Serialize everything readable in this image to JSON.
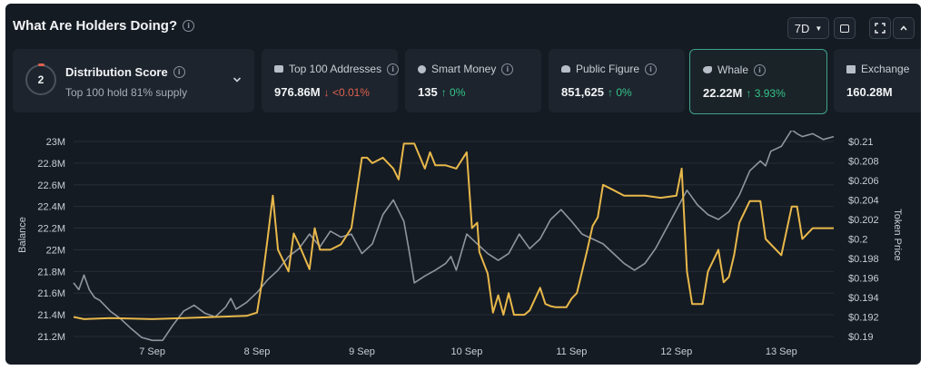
{
  "header": {
    "title": "What Are Holders Doing?",
    "period": "7D"
  },
  "cards": [
    {
      "label": "Distribution Score",
      "score": "2",
      "sub": "Top 100 hold 81% supply"
    },
    {
      "label": "Top 100 Addresses",
      "value": "976.86M",
      "change": "<0.01%",
      "direction": "down",
      "icon": "wallet-icon"
    },
    {
      "label": "Smart Money",
      "value": "135",
      "change": "0%",
      "direction": "up",
      "icon": "smart-money-icon"
    },
    {
      "label": "Public Figure",
      "value": "851,625",
      "change": "0%",
      "direction": "up",
      "icon": "public-figure-icon"
    },
    {
      "label": "Whale",
      "value": "22.22M",
      "change": "3.93%",
      "direction": "up",
      "icon": "whale-icon"
    },
    {
      "label": "Exchange",
      "value": "160.28M",
      "icon": "exchange-icon"
    }
  ],
  "chart_data": {
    "type": "line",
    "ylabel": "Balance",
    "y2label": "Token Price",
    "x_ticks": [
      "7 Sep",
      "8 Sep",
      "9 Sep",
      "10 Sep",
      "11 Sep",
      "12 Sep",
      "13 Sep"
    ],
    "y_ticks": [
      "21.2M",
      "21.4M",
      "21.6M",
      "21.8M",
      "22M",
      "22.2M",
      "22.4M",
      "22.6M",
      "22.8M",
      "23M"
    ],
    "y2_ticks": [
      "$0.19",
      "$0.192",
      "$0.194",
      "$0.196",
      "$0.198",
      "$0.2",
      "$0.202",
      "$0.204",
      "$0.206",
      "$0.208",
      "$0.21"
    ],
    "ylim": [
      21.2,
      23.0
    ],
    "y2lim": [
      0.19,
      0.21
    ],
    "xlim": [
      6.25,
      13.5
    ],
    "grid": true,
    "series": [
      {
        "axis": "left",
        "color": "#e8b84a",
        "x": [
          6.25,
          6.35,
          6.6,
          7.0,
          7.3,
          7.6,
          7.9,
          8.0,
          8.05,
          8.1,
          8.15,
          8.2,
          8.25,
          8.3,
          8.35,
          8.4,
          8.5,
          8.55,
          8.6,
          8.7,
          8.8,
          8.9,
          9.0,
          9.05,
          9.1,
          9.2,
          9.3,
          9.35,
          9.4,
          9.5,
          9.6,
          9.65,
          9.7,
          9.8,
          9.9,
          10.0,
          10.05,
          10.1,
          10.12,
          10.2,
          10.25,
          10.3,
          10.35,
          10.4,
          10.45,
          10.55,
          10.6,
          10.7,
          10.75,
          10.8,
          10.85,
          10.95,
          11.0,
          11.05,
          11.15,
          11.2,
          11.25,
          11.3,
          11.4,
          11.5,
          11.55,
          11.7,
          11.85,
          12.0,
          12.05,
          12.1,
          12.15,
          12.25,
          12.3,
          12.4,
          12.45,
          12.5,
          12.55,
          12.6,
          12.7,
          12.8,
          12.85,
          13.0,
          13.1,
          13.15,
          13.2,
          13.3,
          13.4,
          13.5
        ],
        "y": [
          21.38,
          21.36,
          21.37,
          21.36,
          21.37,
          21.38,
          21.39,
          21.42,
          21.72,
          22.1,
          22.5,
          22.0,
          21.9,
          21.8,
          22.15,
          22.05,
          21.82,
          22.2,
          22.0,
          22.0,
          22.05,
          22.2,
          22.85,
          22.85,
          22.8,
          22.85,
          22.75,
          22.65,
          22.98,
          22.98,
          22.75,
          22.9,
          22.78,
          22.78,
          22.75,
          22.9,
          22.2,
          22.25,
          21.98,
          21.78,
          21.42,
          21.58,
          21.4,
          21.6,
          21.4,
          21.4,
          21.44,
          21.65,
          21.5,
          21.48,
          21.47,
          21.47,
          21.55,
          21.6,
          22.0,
          22.22,
          22.3,
          22.6,
          22.55,
          22.5,
          22.5,
          22.5,
          22.48,
          22.5,
          22.75,
          21.8,
          21.5,
          21.5,
          21.8,
          22.0,
          21.7,
          21.75,
          21.95,
          22.25,
          22.45,
          22.45,
          22.1,
          21.95,
          22.4,
          22.4,
          22.1,
          22.2,
          22.2,
          22.2
        ]
      },
      {
        "axis": "right",
        "color": "#8f969f",
        "x": [
          6.25,
          6.3,
          6.35,
          6.4,
          6.45,
          6.5,
          6.6,
          6.7,
          6.8,
          6.9,
          7.0,
          7.1,
          7.2,
          7.3,
          7.4,
          7.5,
          7.6,
          7.7,
          7.75,
          7.8,
          7.9,
          8.0,
          8.1,
          8.2,
          8.3,
          8.4,
          8.5,
          8.6,
          8.7,
          8.8,
          8.9,
          9.0,
          9.1,
          9.2,
          9.3,
          9.4,
          9.45,
          9.5,
          9.6,
          9.7,
          9.8,
          9.85,
          9.9,
          10.0,
          10.1,
          10.2,
          10.3,
          10.4,
          10.5,
          10.6,
          10.7,
          10.8,
          10.9,
          11.0,
          11.1,
          11.2,
          11.3,
          11.4,
          11.5,
          11.6,
          11.7,
          11.8,
          11.9,
          12.0,
          12.1,
          12.2,
          12.3,
          12.4,
          12.5,
          12.6,
          12.7,
          12.8,
          12.85,
          12.9,
          13.0,
          13.1,
          13.15,
          13.2,
          13.3,
          13.4,
          13.5
        ],
        "y": [
          0.1955,
          0.1948,
          0.1963,
          0.1948,
          0.194,
          0.1937,
          0.1926,
          0.1918,
          0.1908,
          0.1899,
          0.1896,
          0.1896,
          0.1912,
          0.1926,
          0.1932,
          0.1924,
          0.192,
          0.193,
          0.1939,
          0.1928,
          0.1935,
          0.1945,
          0.1958,
          0.1968,
          0.1982,
          0.199,
          0.2005,
          0.1992,
          0.2008,
          0.2002,
          0.2005,
          0.1985,
          0.1995,
          0.2025,
          0.204,
          0.2018,
          0.1988,
          0.1955,
          0.1962,
          0.1968,
          0.1975,
          0.1982,
          0.1968,
          0.2005,
          0.1995,
          0.1985,
          0.1978,
          0.1985,
          0.2005,
          0.199,
          0.2,
          0.202,
          0.203,
          0.2018,
          0.2005,
          0.2,
          0.1995,
          0.1985,
          0.1975,
          0.1968,
          0.1975,
          0.199,
          0.201,
          0.203,
          0.205,
          0.2035,
          0.2025,
          0.202,
          0.2028,
          0.2045,
          0.207,
          0.208,
          0.2075,
          0.209,
          0.2095,
          0.2112,
          0.2108,
          0.2105,
          0.2108,
          0.2102,
          0.2105
        ]
      }
    ]
  }
}
